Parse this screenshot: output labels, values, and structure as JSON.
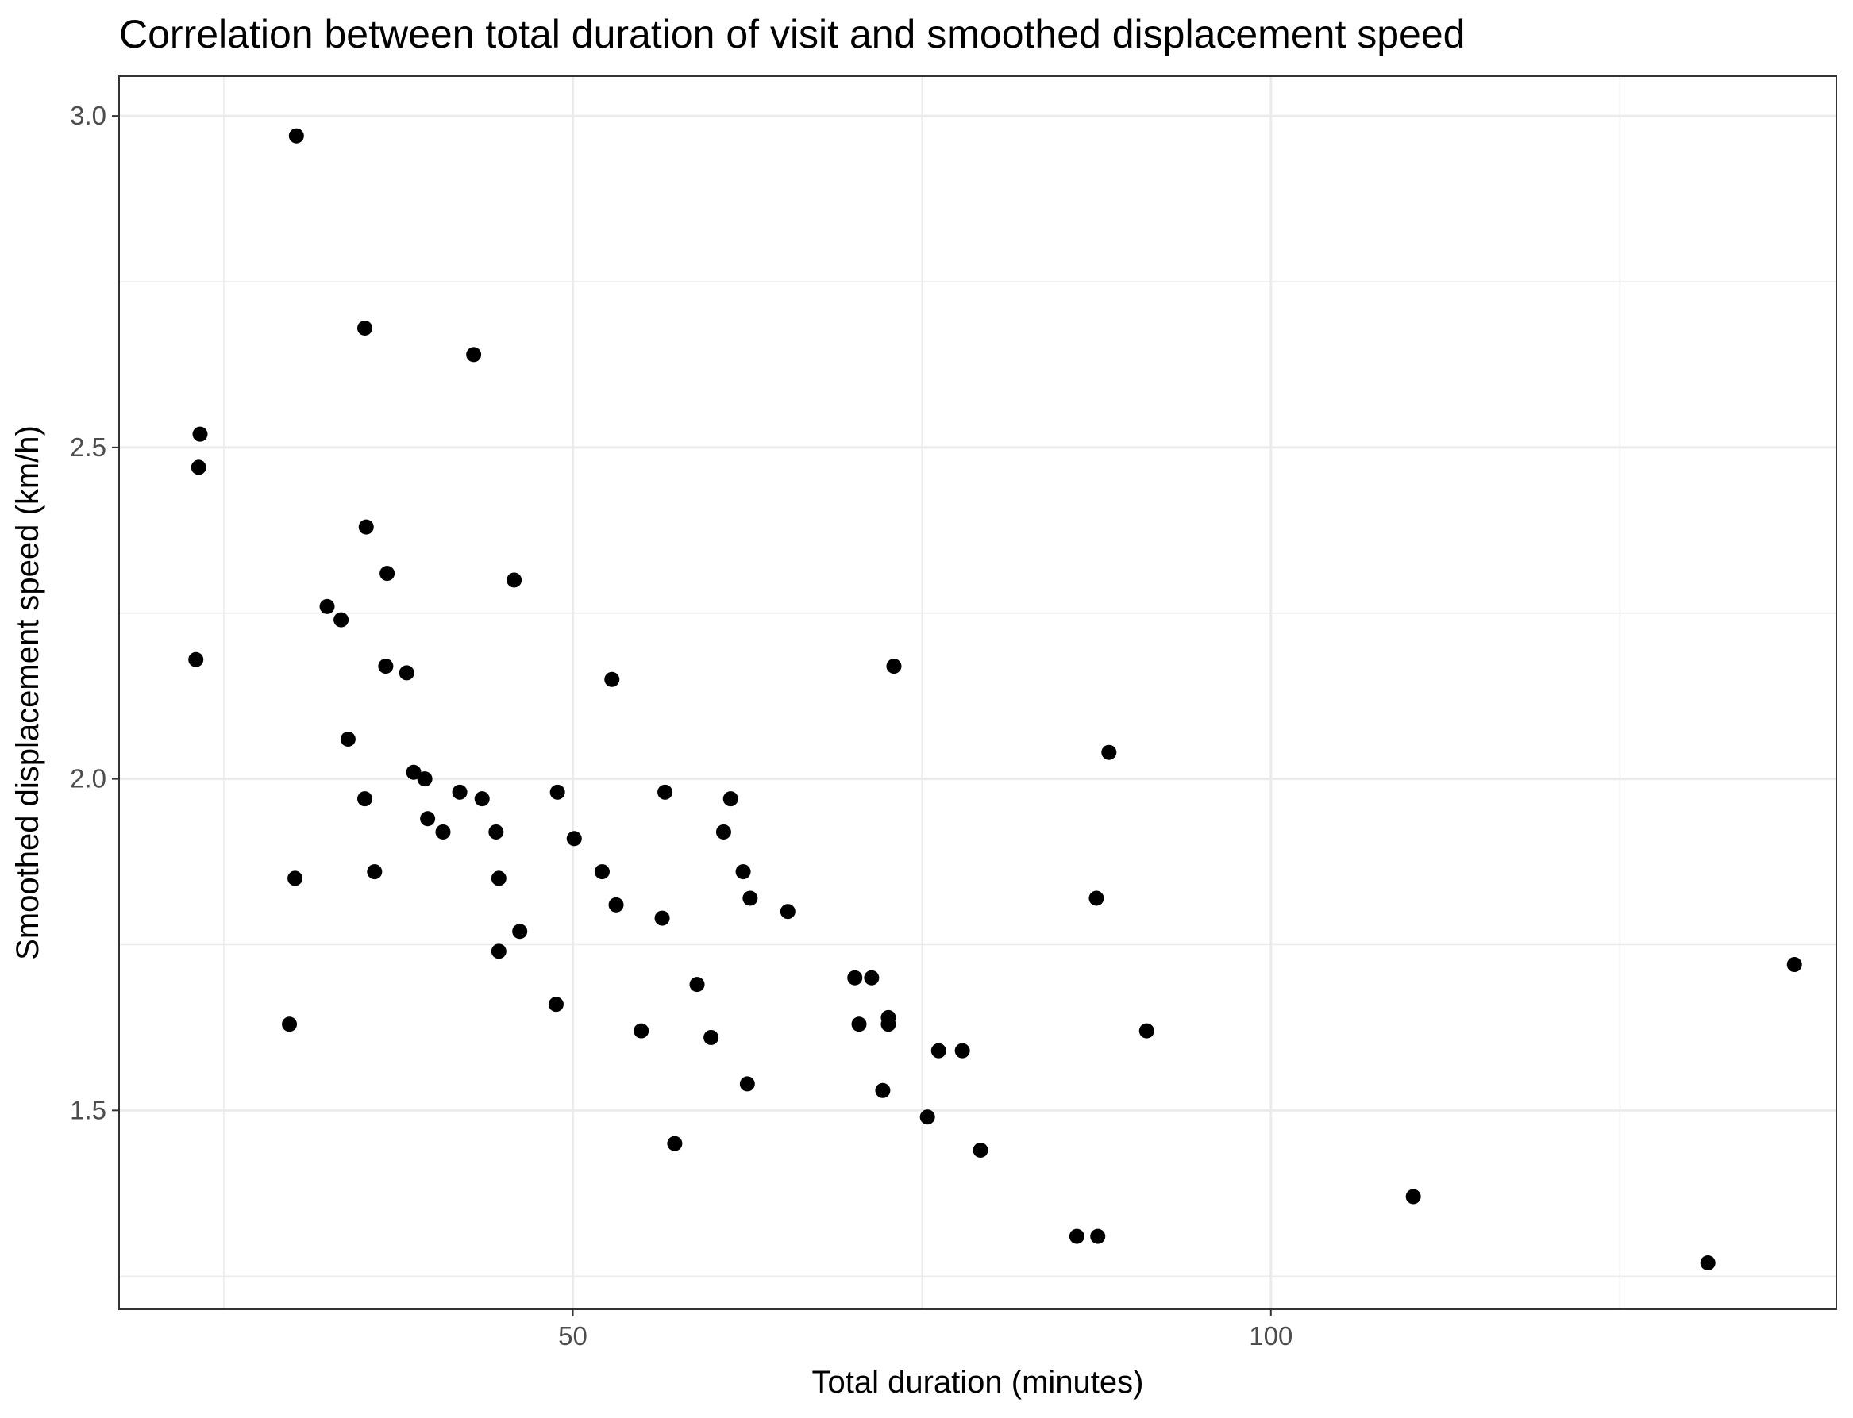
{
  "chart_data": {
    "type": "scatter",
    "title": "Correlation between total duration of visit and smoothed displacement speed",
    "xlabel": "Total duration (minutes)",
    "ylabel": "Smoothed displacement speed (km/h)",
    "xlim": [
      17.5,
      140.5
    ],
    "ylim": [
      1.2,
      3.06
    ],
    "x_ticks": [
      50,
      100
    ],
    "x_tick_labels": [
      "50",
      "100"
    ],
    "x_minor_ticks": [
      25,
      75,
      125
    ],
    "y_ticks": [
      1.5,
      2.0,
      2.5,
      3.0
    ],
    "y_tick_labels": [
      "1.5",
      "2.0",
      "2.5",
      "3.0"
    ],
    "y_minor_ticks": [
      1.25,
      1.75,
      2.25,
      2.75
    ],
    "grid": true,
    "point_color": "#000000",
    "grid_color": "#ebebeb",
    "series": [
      {
        "points": [
          [
            30.2,
            2.97
          ],
          [
            35.1,
            2.68
          ],
          [
            42.9,
            2.64
          ],
          [
            23.3,
            2.52
          ],
          [
            23.2,
            2.47
          ],
          [
            35.2,
            2.38
          ],
          [
            36.7,
            2.31
          ],
          [
            45.8,
            2.3
          ],
          [
            32.4,
            2.26
          ],
          [
            33.4,
            2.24
          ],
          [
            23.0,
            2.18
          ],
          [
            36.6,
            2.17
          ],
          [
            38.1,
            2.16
          ],
          [
            52.8,
            2.15
          ],
          [
            73.0,
            2.17
          ],
          [
            33.9,
            2.06
          ],
          [
            38.6,
            2.01
          ],
          [
            39.4,
            2.0
          ],
          [
            35.1,
            1.97
          ],
          [
            41.9,
            1.98
          ],
          [
            43.5,
            1.97
          ],
          [
            48.9,
            1.98
          ],
          [
            56.6,
            1.98
          ],
          [
            61.3,
            1.97
          ],
          [
            39.6,
            1.94
          ],
          [
            40.7,
            1.92
          ],
          [
            44.5,
            1.92
          ],
          [
            50.1,
            1.91
          ],
          [
            60.8,
            1.92
          ],
          [
            88.4,
            2.04
          ],
          [
            30.1,
            1.85
          ],
          [
            35.8,
            1.86
          ],
          [
            44.7,
            1.85
          ],
          [
            52.1,
            1.86
          ],
          [
            62.2,
            1.86
          ],
          [
            53.1,
            1.81
          ],
          [
            56.4,
            1.79
          ],
          [
            62.7,
            1.82
          ],
          [
            65.4,
            1.8
          ],
          [
            87.5,
            1.82
          ],
          [
            46.2,
            1.77
          ],
          [
            44.7,
            1.74
          ],
          [
            58.9,
            1.69
          ],
          [
            70.2,
            1.7
          ],
          [
            71.4,
            1.7
          ],
          [
            137.5,
            1.72
          ],
          [
            48.8,
            1.66
          ],
          [
            29.7,
            1.63
          ],
          [
            54.9,
            1.62
          ],
          [
            59.9,
            1.61
          ],
          [
            70.5,
            1.63
          ],
          [
            72.6,
            1.64
          ],
          [
            72.6,
            1.63
          ],
          [
            91.1,
            1.62
          ],
          [
            76.2,
            1.59
          ],
          [
            77.9,
            1.59
          ],
          [
            62.5,
            1.54
          ],
          [
            72.2,
            1.53
          ],
          [
            75.4,
            1.49
          ],
          [
            57.3,
            1.45
          ],
          [
            79.2,
            1.44
          ],
          [
            86.1,
            1.31
          ],
          [
            87.6,
            1.31
          ],
          [
            110.2,
            1.37
          ],
          [
            131.3,
            1.27
          ]
        ]
      }
    ]
  }
}
